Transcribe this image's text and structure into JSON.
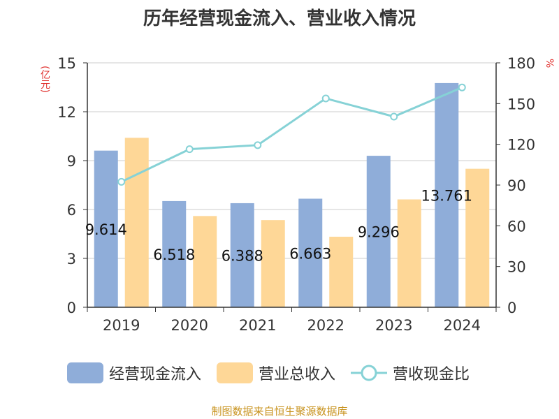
{
  "chart_data": {
    "type": "bar",
    "title": "历年经营现金流入、营业收入情况",
    "categories": [
      "2019",
      "2020",
      "2021",
      "2022",
      "2023",
      "2024"
    ],
    "series": [
      {
        "name": "经营现金流入",
        "axis": "left",
        "type": "bar",
        "values": [
          9.614,
          6.518,
          6.388,
          6.663,
          9.296,
          13.761
        ],
        "data_labels": [
          "9.614",
          "6.518",
          "6.388",
          "6.663",
          "9.296",
          "13.761"
        ]
      },
      {
        "name": "营业总收入",
        "axis": "left",
        "type": "bar",
        "values": [
          10.4,
          5.6,
          5.35,
          4.33,
          6.62,
          8.5
        ]
      },
      {
        "name": "营收现金比",
        "axis": "right",
        "type": "line",
        "values": [
          92.4,
          116.4,
          119.4,
          153.8,
          140.4,
          161.9
        ]
      }
    ],
    "y_left": {
      "label": "(亿元)",
      "ylim": [
        0,
        15
      ],
      "ticks": [
        "0",
        "3",
        "6",
        "9",
        "12",
        "15"
      ]
    },
    "y_right": {
      "label": "%",
      "ylim": [
        0,
        180
      ],
      "ticks": [
        "0",
        "30",
        "60",
        "90",
        "120",
        "150",
        "180"
      ]
    },
    "grid": true,
    "legend_position": "bottom"
  },
  "colors": {
    "bar1": "#8fadd9",
    "bar2": "#fed797",
    "line": "#86d2d6",
    "unit": "#e0312e",
    "source": "#c8931e"
  },
  "source_text": "制图数据来自恒生聚源数据库"
}
